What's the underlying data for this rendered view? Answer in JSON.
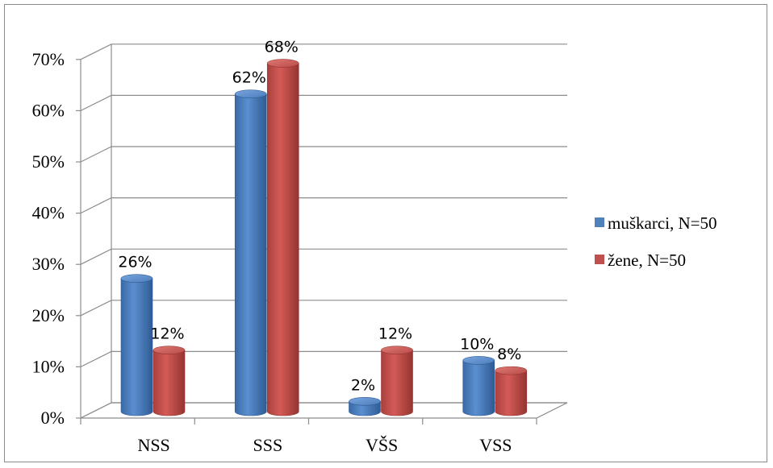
{
  "chart_data": {
    "type": "bar",
    "categories": [
      "NSS",
      "SSS",
      "VŠS",
      "VSS"
    ],
    "series": [
      {
        "name": "muškarci, N=50",
        "values": [
          26,
          62,
          2,
          10
        ],
        "labels": [
          "26%",
          "62%",
          "2%",
          "10%"
        ],
        "color": "#4f81bd"
      },
      {
        "name": "žene, N=50",
        "values": [
          12,
          68,
          12,
          8
        ],
        "labels": [
          "12%",
          "68%",
          "12%",
          "8%"
        ],
        "color": "#c0504d"
      }
    ],
    "ylim": [
      0,
      70
    ],
    "yticks": [
      "0%",
      "10%",
      "20%",
      "30%",
      "40%",
      "50%",
      "60%",
      "70%"
    ],
    "grid": true,
    "legend": "right",
    "style": "3d-cylinder"
  }
}
